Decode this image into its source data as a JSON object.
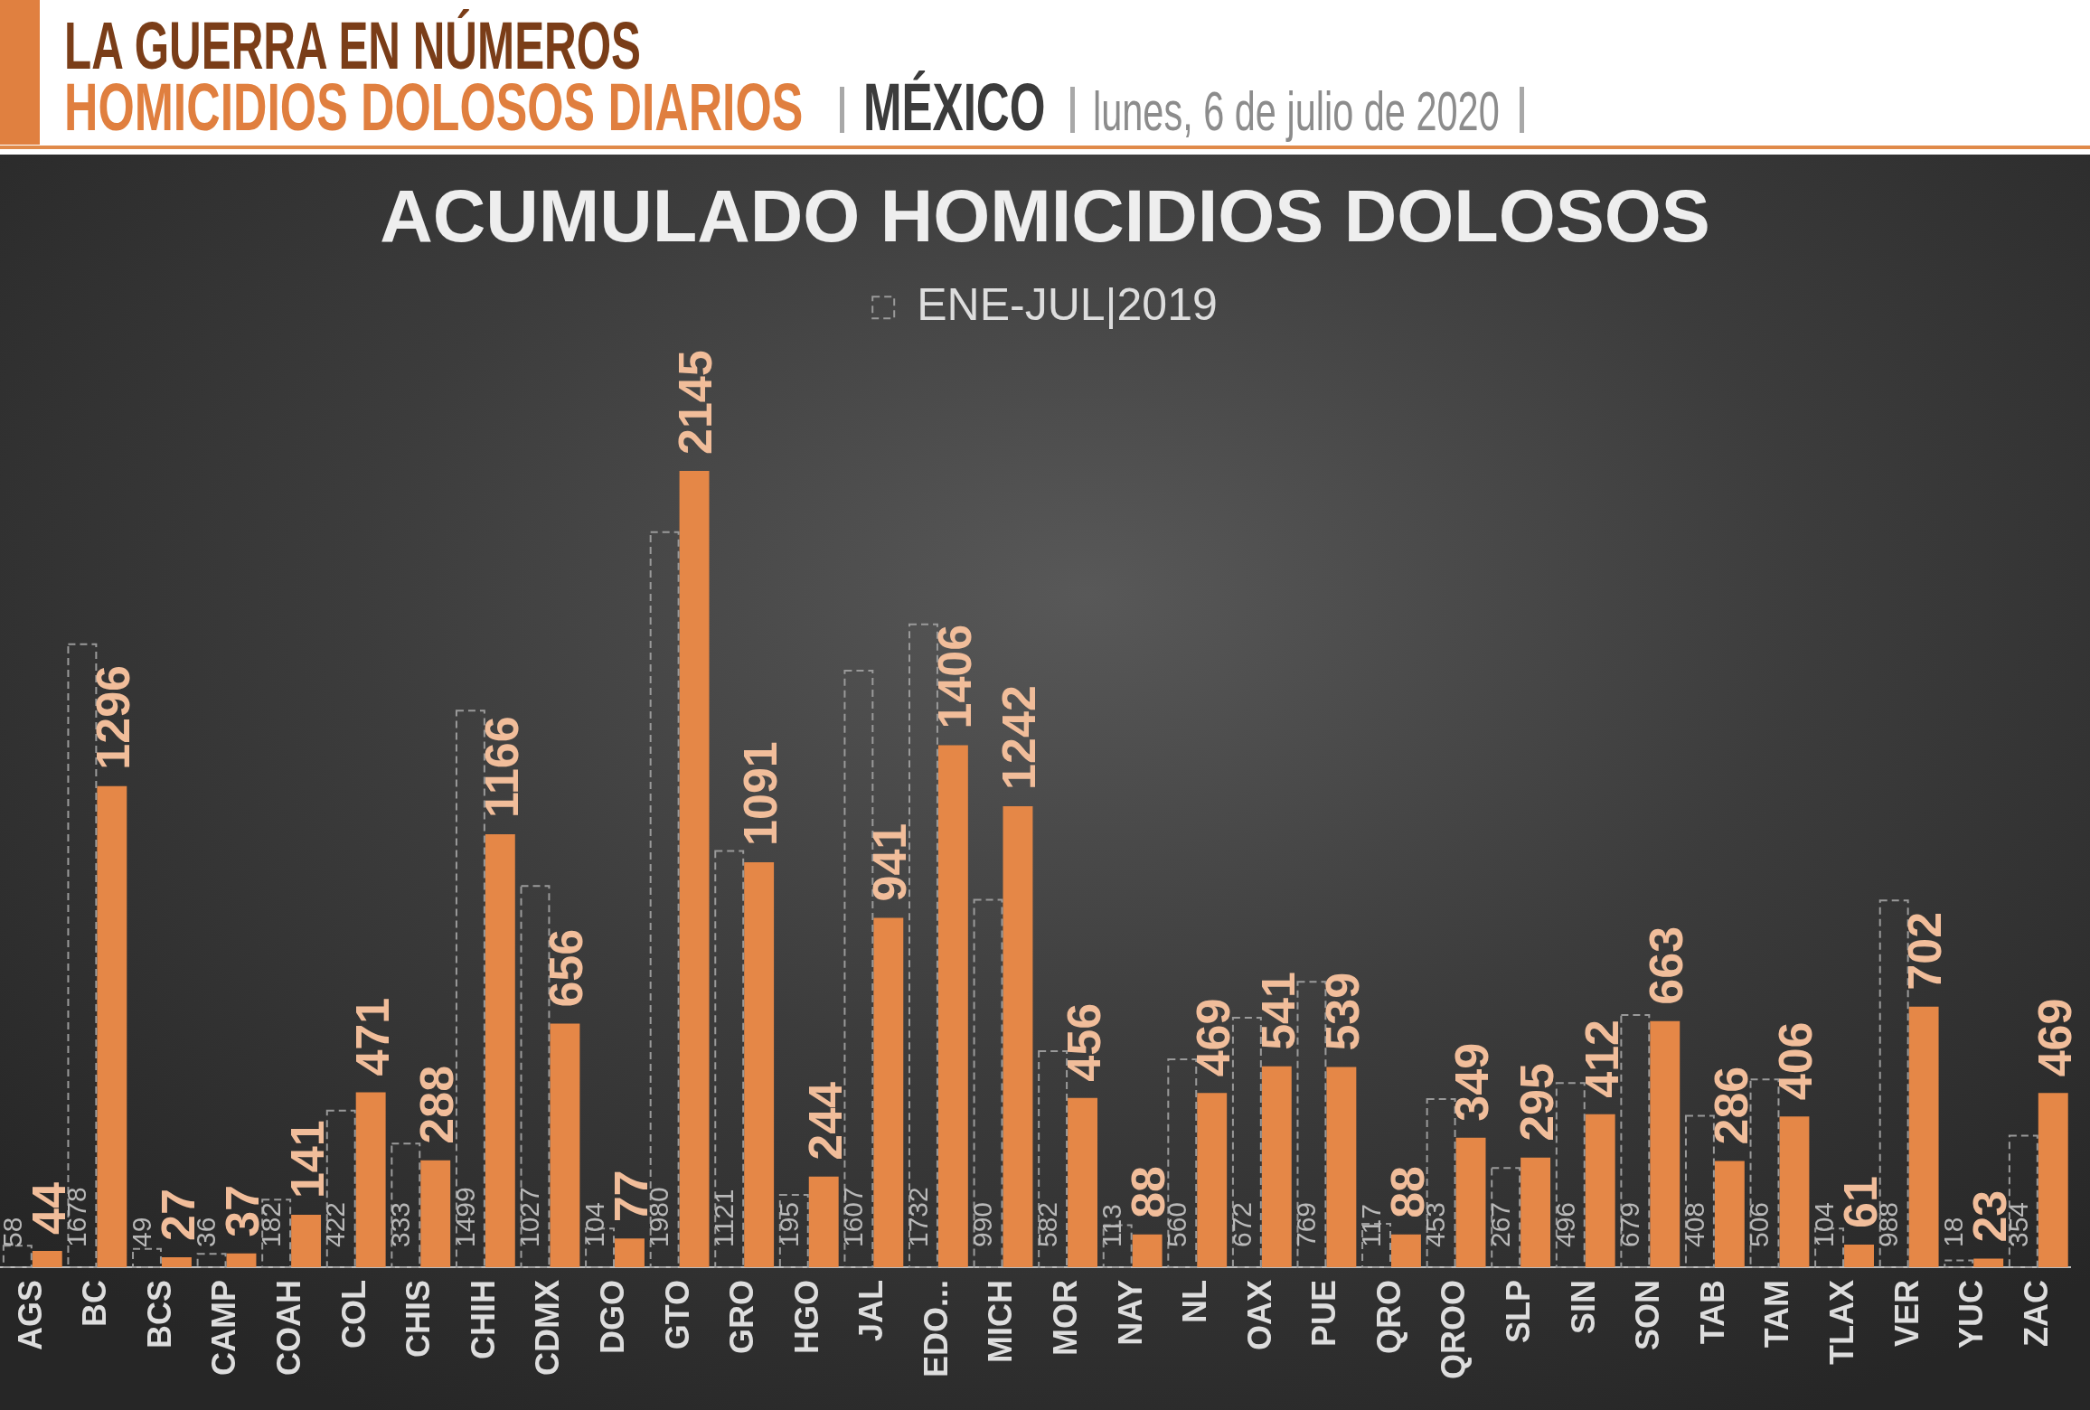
{
  "chart_data": {
    "type": "bar",
    "title": "ACUMULADO HOMICIDIOS DOLOSOS",
    "annotations": [
      "LA GUERRA EN NÚMEROS",
      "HOMICIDIOS DOLOSOS DIARIOS",
      "MÉXICO",
      "lunes, 6 de julio de 2020"
    ],
    "categories": [
      "AGS",
      "BC",
      "BCS",
      "CAMP",
      "COAH",
      "COL",
      "CHIS",
      "CHIH",
      "CDMX",
      "DGO",
      "GTO",
      "GRO",
      "HGO",
      "JAL",
      "EDO...",
      "MICH",
      "MOR",
      "NAY",
      "NL",
      "OAX",
      "PUE",
      "QRO",
      "QROO",
      "SLP",
      "SIN",
      "SON",
      "TAB",
      "TAM",
      "TLAX",
      "VER",
      "YUC",
      "ZAC"
    ],
    "series": [
      {
        "name": "ENE-JUL|2019",
        "color": "#9a9a9a",
        "line_style": "dashed",
        "values": [
          58,
          1678,
          49,
          36,
          182,
          422,
          333,
          1499,
          1027,
          104,
          1980,
          1121,
          195,
          1607,
          1732,
          990,
          582,
          113,
          560,
          672,
          769,
          117,
          453,
          267,
          496,
          679,
          408,
          506,
          104,
          988,
          18,
          354
        ]
      },
      {
        "color": "#e58747",
        "values": [
          44,
          1296,
          27,
          37,
          141,
          471,
          288,
          1166,
          656,
          77,
          2145,
          1091,
          244,
          941,
          1406,
          1242,
          456,
          88,
          469,
          541,
          539,
          88,
          349,
          295,
          412,
          663,
          286,
          406,
          61,
          702,
          23,
          469
        ]
      }
    ],
    "tick_labels": "x",
    "data_labels": true,
    "legend": "top"
  }
}
